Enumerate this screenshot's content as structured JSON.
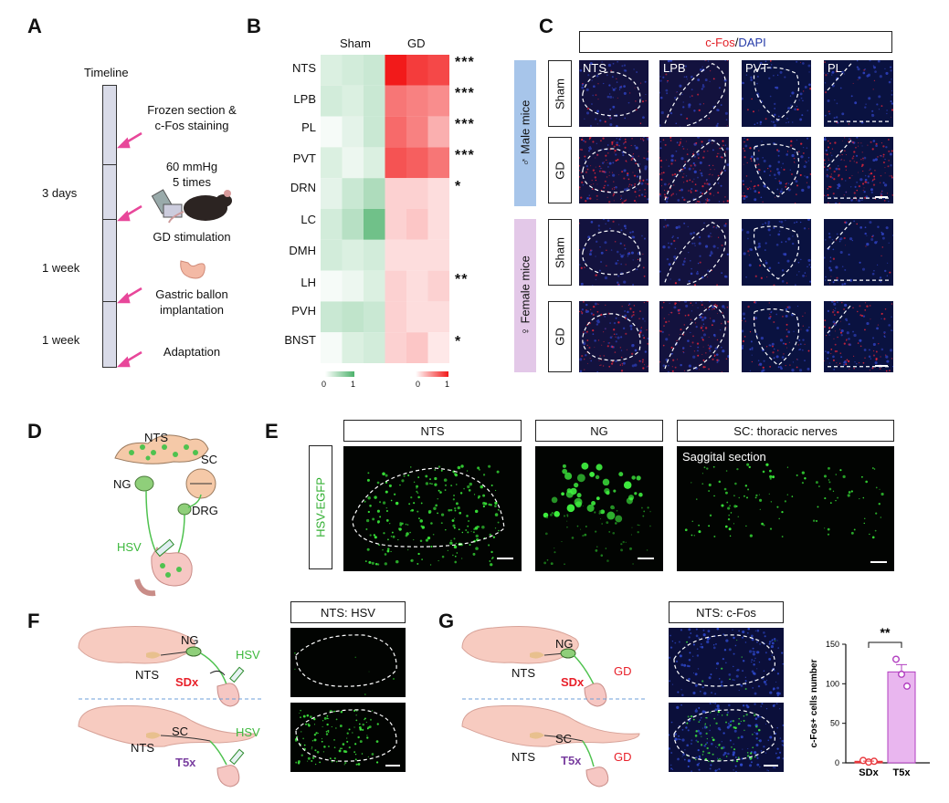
{
  "panels": [
    "A",
    "B",
    "C",
    "D",
    "E",
    "F",
    "G"
  ],
  "panelA": {
    "timeline_label": "Timeline",
    "steps": [
      "Frozen section &\nc-Fos staining",
      "60 mmHg\n5 times",
      "GD stimulation",
      "Gastric ballon\nimplantation",
      "Adaptation"
    ],
    "durations": [
      "3 days",
      "1 week",
      "1 week"
    ],
    "arrow_color": "#e8479a"
  },
  "panelB": {
    "col_labels": [
      "Sham",
      "GD"
    ],
    "row_labels": [
      "NTS",
      "LPB",
      "PL",
      "PVT",
      "DRN",
      "LC",
      "DMH",
      "LH",
      "PVH",
      "BNST"
    ],
    "significance": [
      "***",
      "***",
      "***",
      "***",
      "*",
      "",
      "",
      "**",
      "",
      "*"
    ],
    "colorbar_green": {
      "min": "0",
      "max": "1"
    },
    "colorbar_red": {
      "min": "0",
      "max": "1"
    },
    "colors": {
      "green": "#4cb26b",
      "red": "#f21a1a"
    }
  },
  "chart_data": {
    "type": "heatmap",
    "rows": [
      "NTS",
      "LPB",
      "PL",
      "PVT",
      "DRN",
      "LC",
      "DMH",
      "LH",
      "PVH",
      "BNST"
    ],
    "columns": [
      "Sham-1",
      "Sham-2",
      "Sham-3",
      "GD-1",
      "GD-2",
      "GD-3"
    ],
    "sham_values": [
      [
        0.2,
        0.25,
        0.3
      ],
      [
        0.25,
        0.2,
        0.3
      ],
      [
        0.05,
        0.15,
        0.3
      ],
      [
        0.2,
        0.1,
        0.2
      ],
      [
        0.15,
        0.3,
        0.45
      ],
      [
        0.25,
        0.4,
        0.8
      ],
      [
        0.25,
        0.2,
        0.25
      ],
      [
        0.05,
        0.1,
        0.2
      ],
      [
        0.3,
        0.35,
        0.3
      ],
      [
        0.05,
        0.2,
        0.25
      ]
    ],
    "gd_values": [
      [
        1.0,
        0.85,
        0.8
      ],
      [
        0.6,
        0.55,
        0.5
      ],
      [
        0.65,
        0.55,
        0.35
      ],
      [
        0.75,
        0.7,
        0.6
      ],
      [
        0.2,
        0.2,
        0.15
      ],
      [
        0.2,
        0.25,
        0.15
      ],
      [
        0.15,
        0.15,
        0.15
      ],
      [
        0.2,
        0.15,
        0.2
      ],
      [
        0.2,
        0.15,
        0.15
      ],
      [
        0.2,
        0.25,
        0.1
      ]
    ]
  },
  "panelC": {
    "header_red": "c-Fos",
    "header_sep": "/",
    "header_blue": "DAPI",
    "regions": [
      "NTS",
      "LPB",
      "PVT",
      "PL"
    ],
    "male_label": "♂ Male mice",
    "female_label": "♀ Female mice",
    "row_labels": [
      "Sham",
      "GD",
      "Sham",
      "GD"
    ]
  },
  "panelD": {
    "labels": [
      "NTS",
      "SC",
      "NG",
      "DRG",
      "HSV"
    ]
  },
  "panelE": {
    "side_label": "HSV-EGFP",
    "headers": [
      "NTS",
      "NG",
      "SC: thoracic nerves"
    ],
    "inset_label": "Saggital section"
  },
  "panelF": {
    "header": "NTS: HSV",
    "top": {
      "ng": "NG",
      "nts": "NTS",
      "cut": "SDx",
      "virus": "HSV"
    },
    "bottom": {
      "sc": "SC",
      "nts": "NTS",
      "cut": "T5x",
      "virus": "HSV"
    }
  },
  "panelG": {
    "header": "NTS: c-Fos",
    "top": {
      "ng": "NG",
      "nts": "NTS",
      "cut": "SDx",
      "stim": "GD"
    },
    "bottom": {
      "sc": "SC",
      "nts": "NTS",
      "cut": "T5x",
      "stim": "GD"
    },
    "bar_chart": {
      "type": "bar",
      "categories": [
        "SDx",
        "T5x"
      ],
      "values": [
        2,
        115
      ],
      "points": [
        [
          3,
          1,
          2
        ],
        [
          131,
          112,
          97
        ]
      ],
      "ylabel": "c-Fos+ cells number",
      "ylim": [
        0,
        150
      ],
      "yticks": [
        "0",
        "50",
        "100",
        "150"
      ],
      "significance": "**",
      "colors": {
        "SDx": "#e8363b",
        "T5x": "#e9b6ef",
        "points_T5x": "#b23ec0"
      }
    }
  }
}
